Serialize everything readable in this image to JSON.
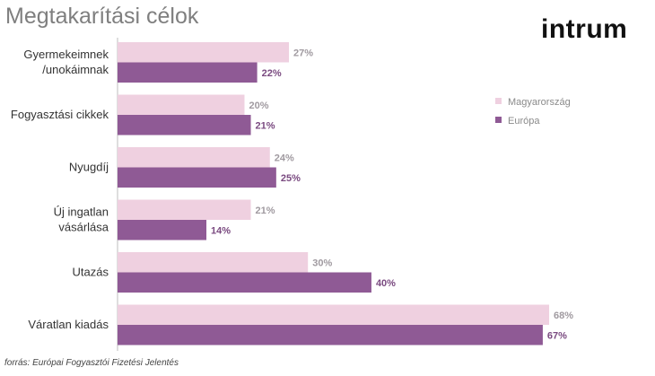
{
  "header": {
    "title": "Megtakarítási célok",
    "logo_text": "intrum"
  },
  "footer": {
    "source": "forrás: Európai Fogyasztói Fizetési Jelentés"
  },
  "colors": {
    "hungary": "#efd0e0",
    "europe": "#8f5a95",
    "hungary_label": "#a09aa0",
    "europe_label": "#7a4a80"
  },
  "chart_data": {
    "type": "bar",
    "orientation": "horizontal",
    "categories": [
      [
        "Gyermekeimnek",
        "/unokáimnak"
      ],
      [
        "Fogyasztási cikkek"
      ],
      [
        "Nyugdíj"
      ],
      [
        "Új ingatlan",
        "vásárlása"
      ],
      [
        "Utazás"
      ],
      [
        "Váratlan kiadás"
      ]
    ],
    "series": [
      {
        "name": "Magyarország",
        "values": [
          27,
          20,
          24,
          21,
          30,
          68
        ],
        "labels": [
          "27%",
          "20%",
          "24%",
          "21%",
          "30%",
          "68%"
        ]
      },
      {
        "name": "Európa",
        "values": [
          22,
          21,
          25,
          14,
          40,
          67
        ],
        "labels": [
          "22%",
          "21%",
          "25%",
          "14%",
          "40%",
          "67%"
        ]
      }
    ],
    "xlim": [
      0,
      68
    ],
    "grid": false,
    "legend_position": "right"
  }
}
